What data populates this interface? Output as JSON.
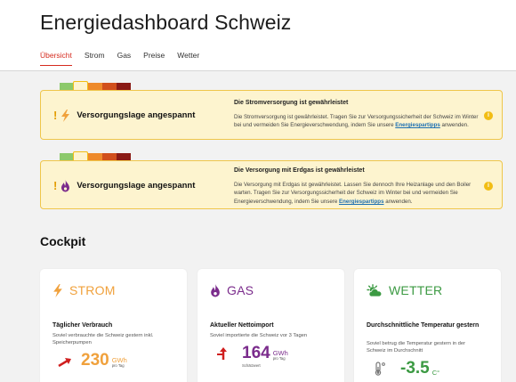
{
  "app": {
    "title": "Energiedashboard Schweiz"
  },
  "tabs": [
    {
      "label": "Übersicht",
      "active": true
    },
    {
      "label": "Strom",
      "active": false
    },
    {
      "label": "Gas",
      "active": false
    },
    {
      "label": "Preise",
      "active": false
    },
    {
      "label": "Wetter",
      "active": false
    }
  ],
  "alerts": [
    {
      "icon": "lightning-icon",
      "status": "Versorgungslage angespannt",
      "heading": "Die Stromversorgung ist gewährleistet",
      "text_before": "Die Stromversorgung ist gewährleistet. Tragen Sie zur Versorgungssicherheit der Schweiz im Winter bei und vermeiden Sie Energieverschwendung, indem Sie unsere ",
      "link": "Energiespartipps",
      "text_after": " anwenden."
    },
    {
      "icon": "flame-icon",
      "status": "Versorgungslage angespannt",
      "heading": "Die Versorgung mit Erdgas ist gewährleistet",
      "text_before": "Die Versorgung mit Erdgas ist gewährleistet. Lassen Sie dennoch Ihre Heizanlage und den Boiler warten. Tragen Sie zur Versorgungssicherheit der Schweiz im Winter bei und vermeiden Sie Energieverschwendung, indem Sie unsere ",
      "link": "Energiespartipps",
      "text_after": " anwenden."
    }
  ],
  "gauge_colors": [
    "#8cc96b",
    "#f5cf47",
    "#ee8a2b",
    "#d14f1c",
    "#8a1a15"
  ],
  "cockpit": {
    "title": "Cockpit",
    "cards": [
      {
        "title": "STROM",
        "color": "#f0a13c",
        "metric": "Täglicher Verbrauch",
        "desc": "Soviel verbrauchte die Schweiz gestern inkl. Speicherpumpen",
        "value": "230",
        "unit": "GWh",
        "sub": "pro Tag"
      },
      {
        "title": "GAS",
        "color": "#7b2c8c",
        "metric": "Aktueller Nettoimport",
        "desc": "Soviel importierte die Schweiz vor 3 Tagen",
        "value": "164",
        "unit": "GWh",
        "sub": "pro Tag",
        "note": "Schätzwert"
      },
      {
        "title": "WETTER",
        "color": "#3c9a43",
        "metric": "Durchschnittliche Temperatur gestern",
        "desc": "Soviel betrug die Temperatur gestern in der Schweiz im Durchschnitt",
        "value": "-3.5",
        "unit": "C°"
      }
    ]
  }
}
